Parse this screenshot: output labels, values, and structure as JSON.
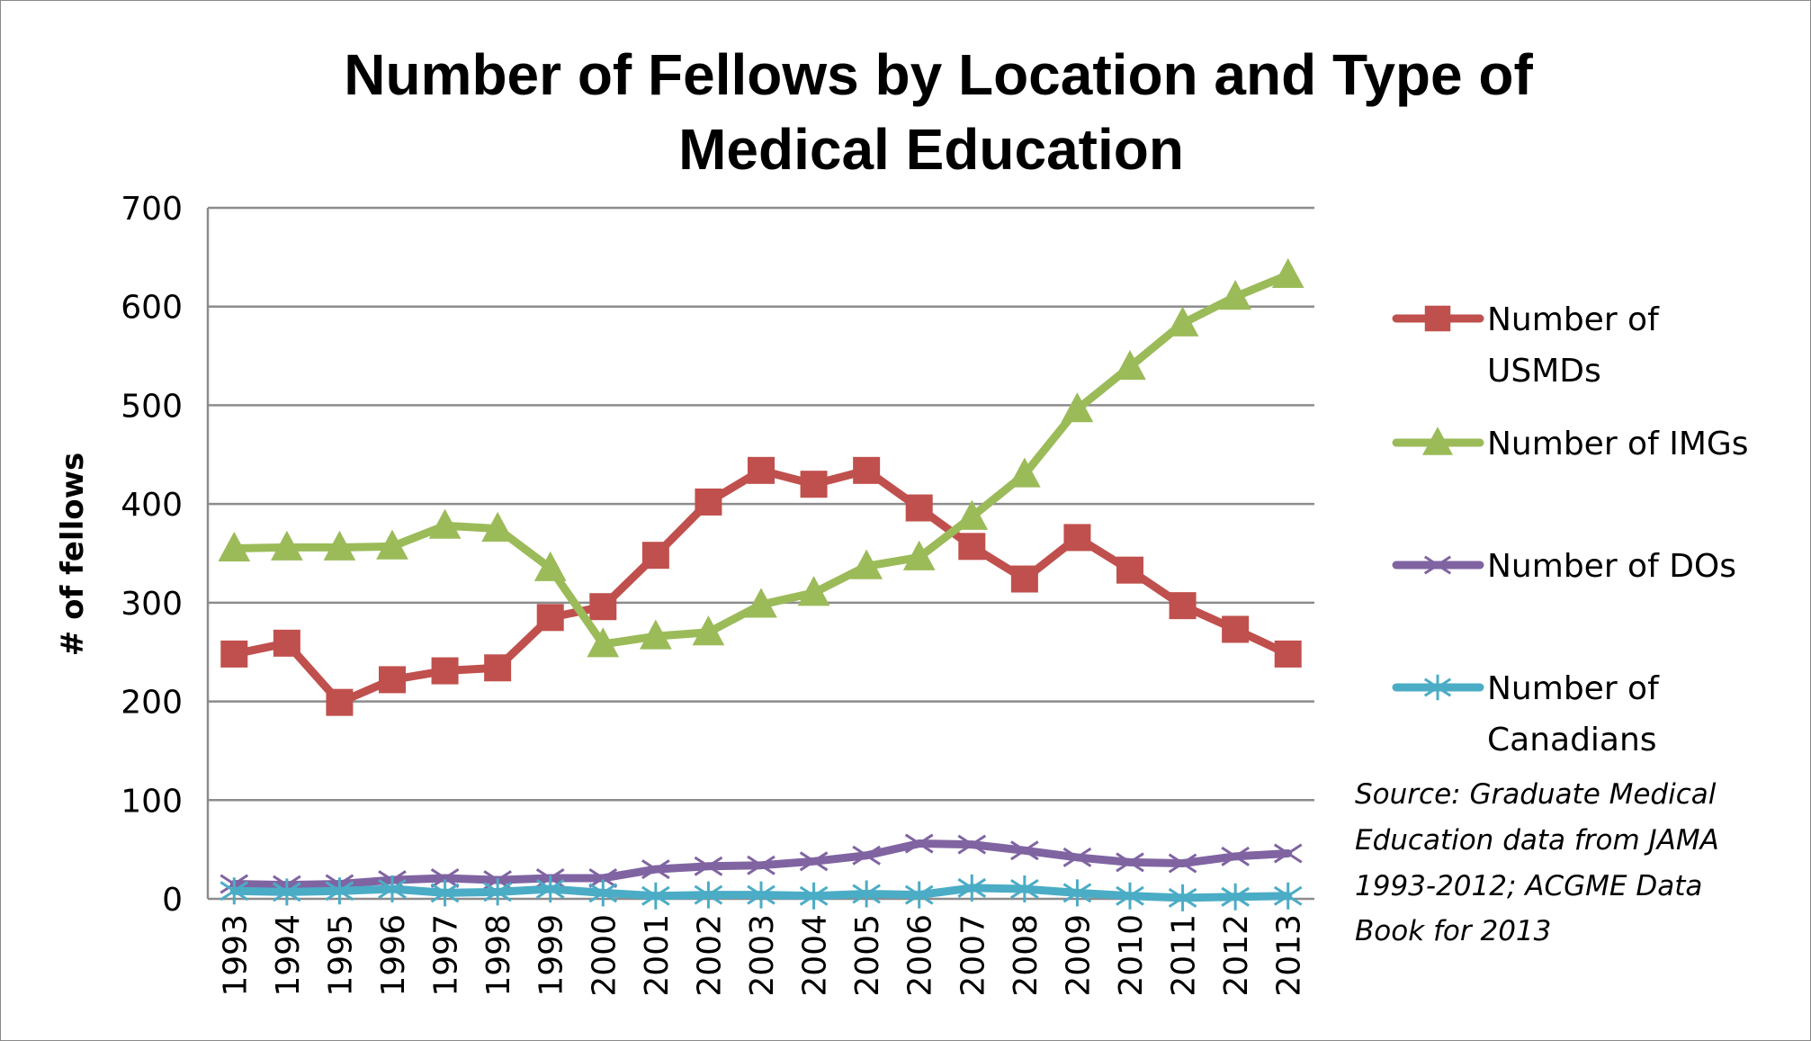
{
  "chart_data": {
    "type": "line",
    "title": [
      "Number of Fellows by Location and Type of",
      "Medical Education"
    ],
    "xlabel": "",
    "ylabel": "# of fellows",
    "ylim": [
      0,
      700
    ],
    "yticks": [
      "0",
      "100",
      "200",
      "300",
      "400",
      "500",
      "600",
      "700"
    ],
    "grid": true,
    "legend_position": "right",
    "categories": [
      "1993",
      "1994",
      "1995",
      "1996",
      "1997",
      "1998",
      "1999",
      "2000",
      "2001",
      "2002",
      "2003",
      "2004",
      "2005",
      "2006",
      "2007",
      "2008",
      "2009",
      "2010",
      "2011",
      "2012",
      "2013"
    ],
    "series": [
      {
        "name": "Number of USMDs",
        "legend_lines": [
          "Number of",
          "USMDs"
        ],
        "color": "#c0504d",
        "marker": "square",
        "values": [
          248,
          259,
          199,
          222,
          231,
          234,
          285,
          296,
          348,
          402,
          434,
          420,
          434,
          396,
          357,
          324,
          366,
          333,
          297,
          273,
          248
        ]
      },
      {
        "name": "Number of IMGs",
        "legend_lines": [
          "Number of IMGs"
        ],
        "color": "#9bbb59",
        "marker": "triangle",
        "values": [
          355,
          356,
          356,
          357,
          378,
          375,
          335,
          258,
          266,
          270,
          298,
          310,
          337,
          346,
          387,
          430,
          496,
          539,
          583,
          610,
          632
        ]
      },
      {
        "name": "Number of DOs",
        "legend_lines": [
          "Number of DOs"
        ],
        "color": "#8064a2",
        "marker": "x",
        "values": [
          15,
          14,
          15,
          19,
          21,
          19,
          21,
          21,
          30,
          33,
          34,
          38,
          44,
          56,
          55,
          49,
          42,
          37,
          36,
          43,
          46
        ]
      },
      {
        "name": "Number of Canadians",
        "legend_lines": [
          "Number of",
          "Canadians"
        ],
        "color": "#4bacc6",
        "marker": "star",
        "values": [
          8,
          7,
          8,
          10,
          6,
          7,
          10,
          6,
          3,
          4,
          4,
          3,
          5,
          4,
          11,
          10,
          6,
          3,
          1,
          2,
          3
        ]
      }
    ],
    "annotation": [
      "Source: Graduate Medical",
      "Education data from JAMA",
      "1993-2012;  ACGME Data",
      "Book for 2013"
    ]
  }
}
